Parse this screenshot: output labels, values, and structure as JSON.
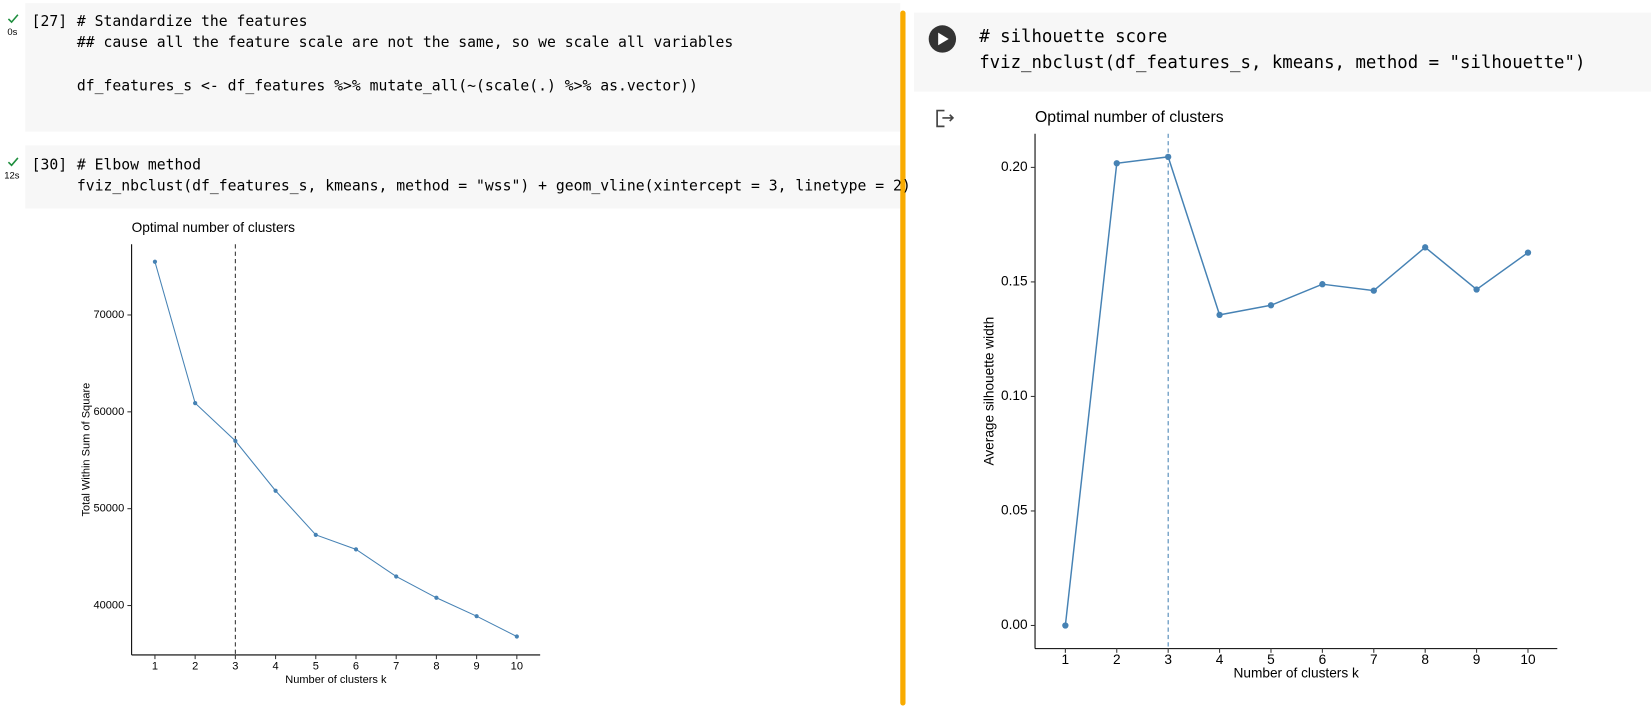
{
  "cells": [
    {
      "prompt": "[27]",
      "time": "0s",
      "lines": [
        "# Standardize the features",
        "## cause all the feature scale are not the same, so we scale all variables",
        "df_features_s <- df_features %>% mutate_all(~(scale(.) %>% as.vector))"
      ]
    },
    {
      "prompt": "[30]",
      "time": "12s",
      "lines": [
        "# Elbow method",
        "fviz_nbclust(df_features_s, kmeans, method = \"wss\") + geom_vline(xintercept = 3, linetype = 2)"
      ]
    },
    {
      "lines": [
        "# silhouette score",
        "fviz_nbclust(df_features_s, kmeans, method = \"silhouette\")"
      ]
    }
  ],
  "chart_data": [
    {
      "type": "line",
      "title": "Optimal number of clusters",
      "x_label": "Number of clusters k",
      "y_label": "Total Within Sum of Square",
      "x": [
        1,
        2,
        3,
        4,
        5,
        6,
        7,
        8,
        9,
        10
      ],
      "values": [
        75500,
        60900,
        57000,
        51850,
        47300,
        45800,
        43000,
        40800,
        38900,
        36800
      ],
      "color": "#4682b4",
      "vline": 3,
      "vline_color": "#333333",
      "xlim": [
        0.42,
        10.58
      ],
      "ylim": [
        34900,
        77300
      ],
      "xticks": [
        1,
        2,
        3,
        4,
        5,
        6,
        7,
        8,
        9,
        10
      ],
      "yticks": [
        40000,
        50000,
        60000,
        70000
      ],
      "grid": false
    },
    {
      "type": "line",
      "title": "Optimal number of clusters",
      "x_label": "Number of clusters k",
      "y_label": "Average silhouette width",
      "x": [
        1,
        2,
        3,
        4,
        5,
        6,
        7,
        8,
        9,
        10
      ],
      "values": [
        0,
        0.2018,
        0.2046,
        0.1356,
        0.1398,
        0.149,
        0.1462,
        0.1651,
        0.1467,
        0.1628
      ],
      "color": "#4682b4",
      "vline": 3,
      "vline_color": "#4682b4",
      "xlim": [
        0.41,
        10.57
      ],
      "ylim": [
        -0.0101,
        0.2147
      ],
      "xticks": [
        1,
        2,
        3,
        4,
        5,
        6,
        7,
        8,
        9,
        10
      ],
      "yticks": [
        {
          "value": 0,
          "label": "0.00"
        },
        0.05,
        {
          "value": 0.1,
          "label": "0.10"
        },
        0.15,
        {
          "value": 0.2,
          "label": "0.20"
        }
      ],
      "grid": false
    }
  ]
}
